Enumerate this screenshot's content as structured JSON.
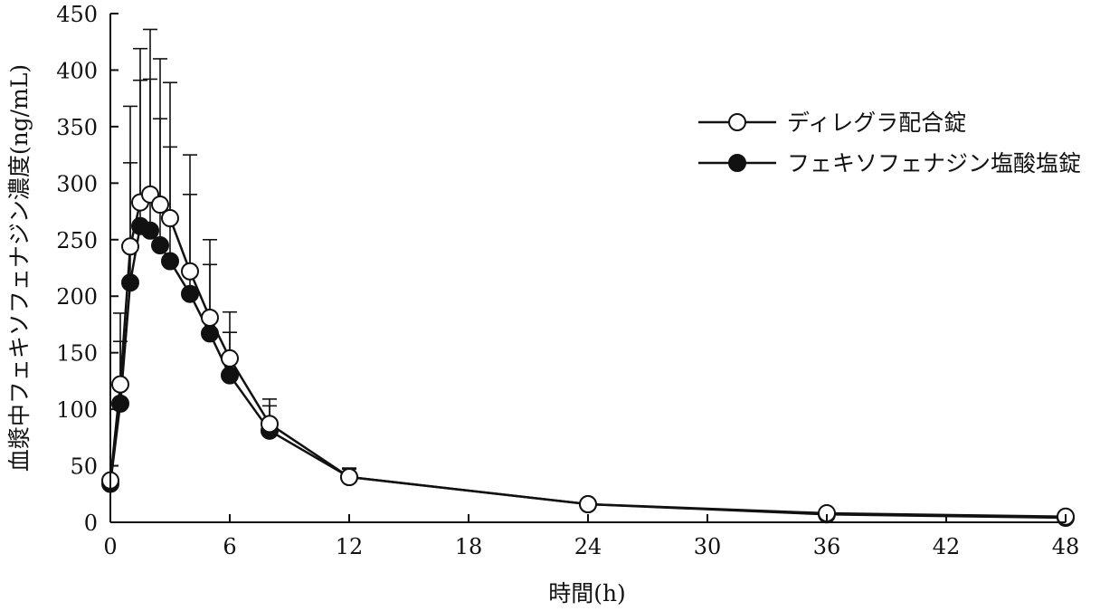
{
  "chart_data": {
    "type": "line",
    "xlabel": "時間(h)",
    "ylabel": "血漿中フェキソフェナジン濃度(ng/mL)",
    "xlim": [
      0,
      48
    ],
    "ylim": [
      0,
      450
    ],
    "x_ticks": [
      "0",
      "6",
      "12",
      "18",
      "24",
      "30",
      "36",
      "42",
      "48"
    ],
    "y_ticks": [
      "0",
      "50",
      "100",
      "150",
      "200",
      "250",
      "300",
      "350",
      "400",
      "450"
    ],
    "grid": false,
    "legend_position": "top-right",
    "series": [
      {
        "name": "ディレグラ配合錠",
        "marker": "open-circle",
        "x": [
          0,
          0.5,
          1,
          1.5,
          2,
          2.5,
          3,
          4,
          5,
          6,
          8,
          12,
          24,
          36,
          48
        ],
        "y": [
          37,
          122,
          244,
          283,
          290,
          281,
          269,
          222,
          181,
          145,
          87,
          40,
          16,
          8,
          5
        ],
        "error_upper": [
          41,
          185,
          368,
          419,
          436,
          410,
          389,
          325,
          250,
          186,
          109,
          48,
          null,
          null,
          null
        ]
      },
      {
        "name": "フェキソフェナジン塩酸塩錠",
        "marker": "filled-circle",
        "x": [
          0,
          0.5,
          1,
          1.5,
          2,
          2.5,
          3,
          4,
          5,
          6,
          8,
          12,
          24,
          36,
          48
        ],
        "y": [
          34,
          105,
          212,
          262,
          258,
          245,
          231,
          202,
          167,
          130,
          81,
          40,
          16,
          7,
          4
        ],
        "error_upper": [
          39,
          160,
          318,
          391,
          392,
          357,
          332,
          290,
          228,
          168,
          103,
          47,
          null,
          null,
          null
        ]
      }
    ]
  }
}
